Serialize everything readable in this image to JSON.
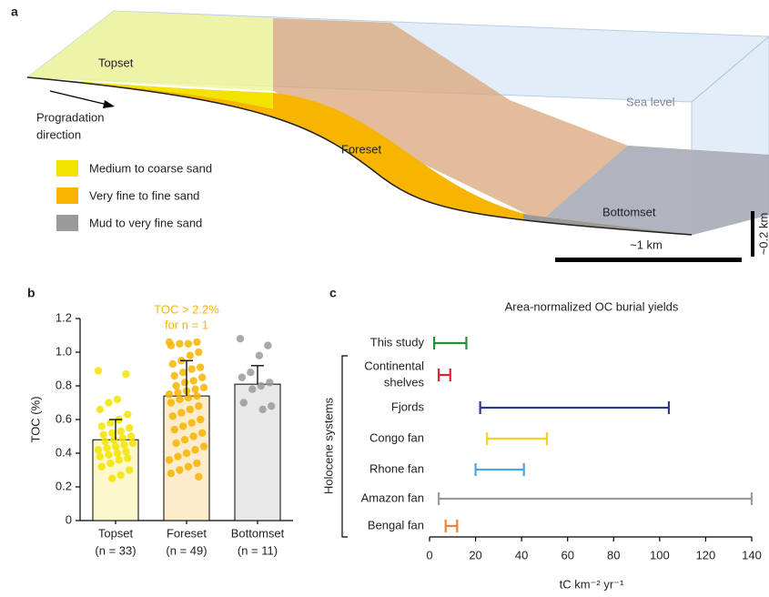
{
  "diagram": {
    "panel": "a",
    "topset": "Topset",
    "foreset": "Foreset",
    "bottomset": "Bottomset",
    "sea_level": "Sea level",
    "progradation": [
      "Progradation",
      "direction"
    ],
    "legend": [
      "Medium to coarse sand",
      "Very fine to fine sand",
      "Mud to very fine sand"
    ],
    "scale_horizontal": "~1 km",
    "scale_vertical": "~0.2 km"
  },
  "chart_data": [
    {
      "type": "bar",
      "panel": "b",
      "ylabel": "TOC (%)",
      "categories": [
        "Topset",
        "Foreset",
        "Bottomset"
      ],
      "category_notes": [
        "(n = 33)",
        "(n = 49)",
        "(n = 11)"
      ],
      "values": [
        0.48,
        0.74,
        0.81
      ],
      "errors": [
        0.12,
        0.21,
        0.11
      ],
      "colors": [
        "#f2e400",
        "#f7b400",
        "#9a9a9a"
      ],
      "bar_colors": [
        "#fdf8cc",
        "#fdeccb",
        "#e8e8e8"
      ],
      "points": [
        [
          0.89,
          0.87,
          0.72,
          0.7,
          0.66,
          0.63,
          0.6,
          0.58,
          0.56,
          0.55,
          0.53,
          0.52,
          0.51,
          0.5,
          0.49,
          0.48,
          0.47,
          0.46,
          0.45,
          0.44,
          0.43,
          0.42,
          0.41,
          0.4,
          0.39,
          0.38,
          0.37,
          0.36,
          0.34,
          0.32,
          0.3,
          0.27,
          0.25
        ],
        [
          1.06,
          1.06,
          1.05,
          1.05,
          1.04,
          1.0,
          0.98,
          0.95,
          0.93,
          0.91,
          0.9,
          0.88,
          0.86,
          0.85,
          0.83,
          0.82,
          0.8,
          0.79,
          0.78,
          0.77,
          0.76,
          0.75,
          0.74,
          0.73,
          0.72,
          0.7,
          0.68,
          0.66,
          0.64,
          0.62,
          0.6,
          0.58,
          0.56,
          0.54,
          0.52,
          0.5,
          0.48,
          0.46,
          0.44,
          0.42,
          0.4,
          0.38,
          0.36,
          0.34,
          0.32,
          0.3,
          0.28,
          0.26
        ],
        [
          1.08,
          1.04,
          0.98,
          0.88,
          0.85,
          0.82,
          0.8,
          0.78,
          0.7,
          0.68,
          0.66
        ]
      ],
      "annotation": [
        "TOC > 2.2%",
        "for n = 1"
      ],
      "ylim": [
        0,
        1.2
      ],
      "yticks": [
        0,
        0.2,
        0.4,
        0.6,
        0.8,
        {
          "value": 1,
          "label": "1.0"
        },
        1.2
      ]
    },
    {
      "type": "range",
      "panel": "c",
      "title": "Area-normalized OC burial yields",
      "categories": [
        [
          "This study"
        ],
        [
          "Continental",
          "shelves"
        ],
        [
          "Fjords"
        ],
        [
          "Congo fan"
        ],
        [
          "Rhone fan"
        ],
        [
          "Amazon fan"
        ],
        [
          "Bengal fan"
        ]
      ],
      "low": [
        2,
        4,
        22,
        25,
        20,
        4,
        7
      ],
      "high": [
        16,
        9,
        104,
        51,
        41,
        140,
        12
      ],
      "colors": [
        "#2a8a40",
        "#e0202c",
        "#2b3b8c",
        "#f2d324",
        "#4aa8e0",
        "#9a9a9a",
        "#f08232"
      ],
      "group_label": "Holocene systems",
      "xlabel": "tC km⁻² yr⁻¹",
      "xlim": [
        0,
        140
      ],
      "xticks": [
        0,
        20,
        40,
        60,
        80,
        100,
        120,
        140
      ]
    }
  ]
}
